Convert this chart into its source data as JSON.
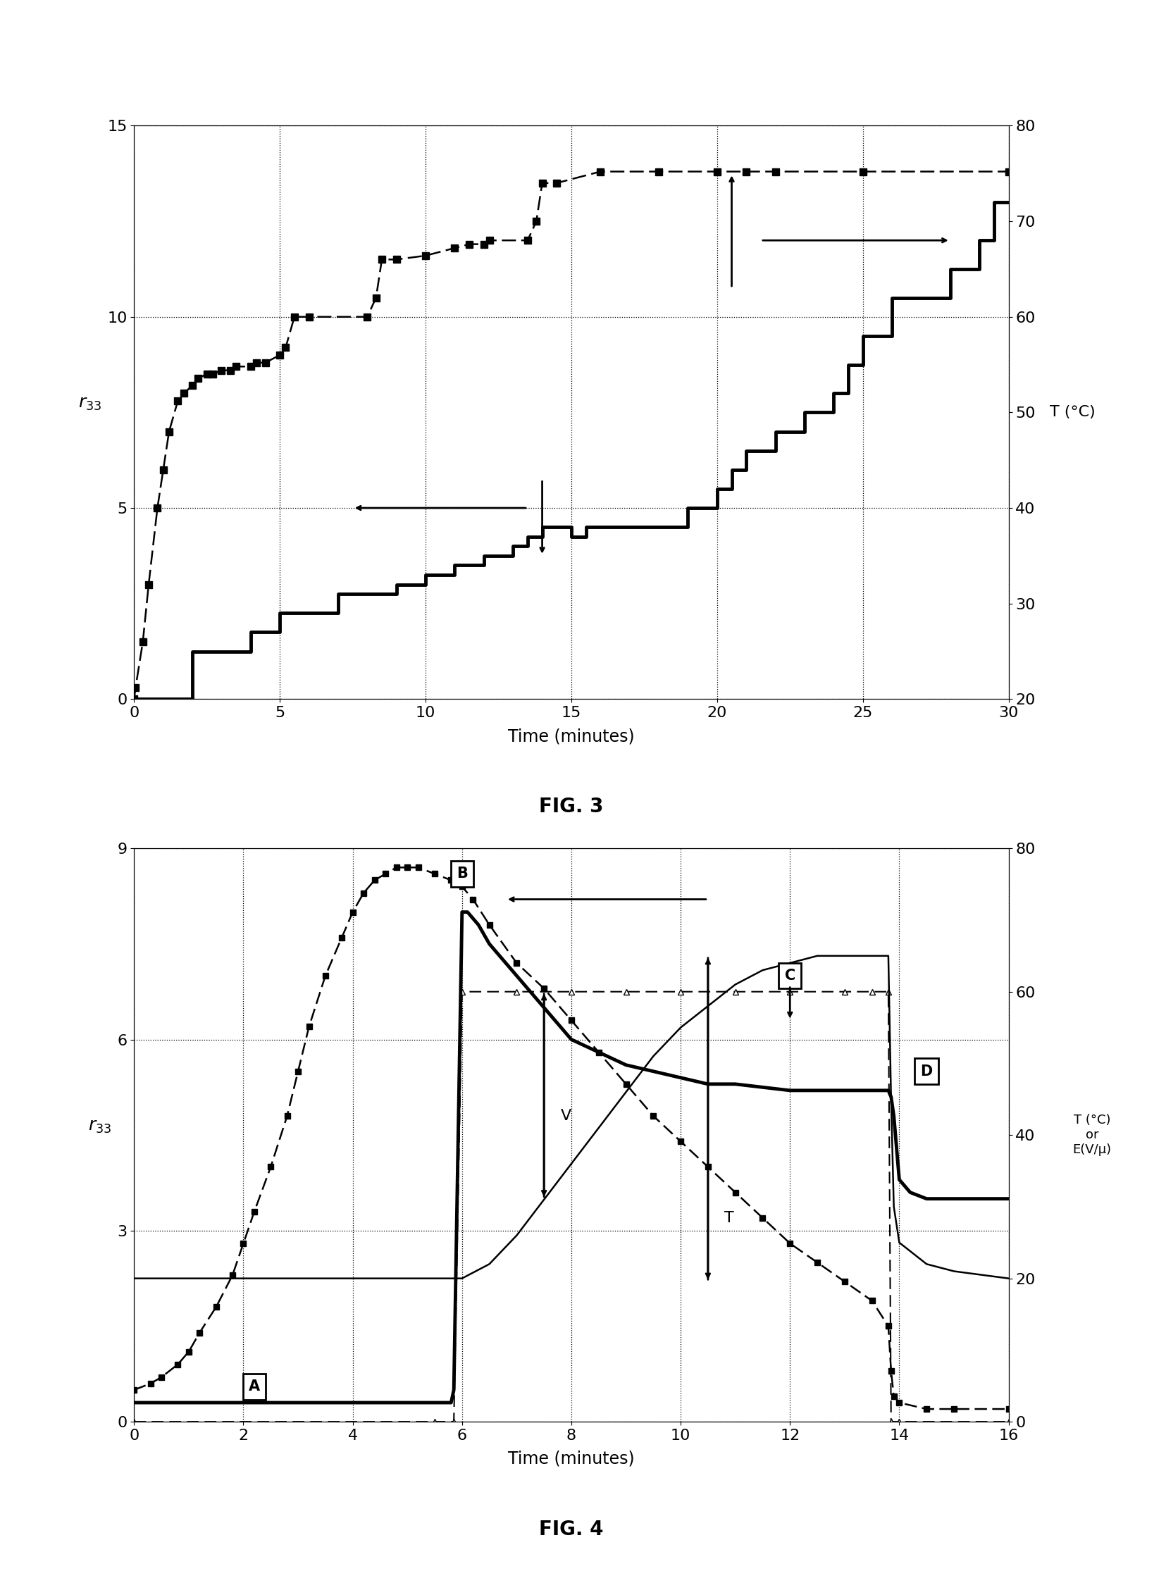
{
  "fig3": {
    "xlabel": "Time (minutes)",
    "ylabel_left": "r33",
    "ylabel_right": "T (°C)",
    "xlim": [
      0,
      30
    ],
    "ylim_left": [
      0,
      15
    ],
    "ylim_right": [
      20,
      80
    ],
    "xticks": [
      0,
      5,
      10,
      15,
      20,
      25,
      30
    ],
    "yticks_left": [
      0,
      5,
      10,
      15
    ],
    "yticks_right": [
      20,
      30,
      40,
      50,
      60,
      70,
      80
    ],
    "fig_label": "FIG. 3"
  },
  "fig4": {
    "xlabel": "Time (minutes)",
    "ylabel_left": "r33",
    "ylabel_right": "T (°C)\nor\nE(V/μ)",
    "xlim": [
      0,
      16
    ],
    "ylim_left": [
      0,
      9
    ],
    "ylim_right": [
      0,
      80
    ],
    "xticks": [
      0,
      2,
      4,
      6,
      8,
      10,
      12,
      14,
      16
    ],
    "yticks_left": [
      0,
      3,
      6,
      9
    ],
    "yticks_right": [
      0,
      20,
      40,
      60,
      80
    ],
    "fig_label": "FIG. 4"
  }
}
